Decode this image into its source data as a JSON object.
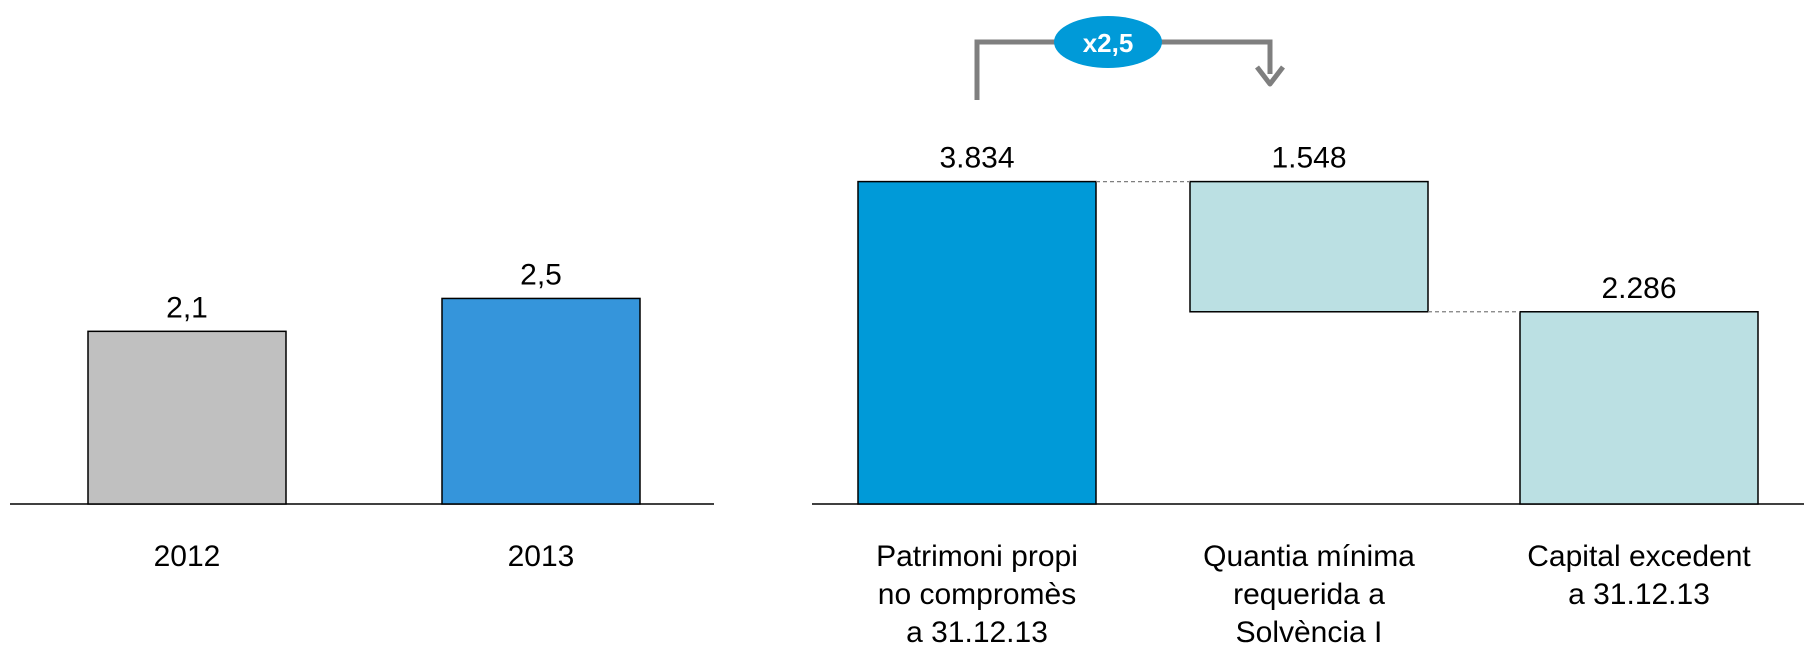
{
  "chart_data": [
    {
      "type": "bar",
      "categories": [
        "2012",
        "2013"
      ],
      "values": [
        2.1,
        2.5
      ],
      "value_labels": [
        "2,1",
        "2,5"
      ],
      "colors": [
        "#c0c0c0",
        "#3595db"
      ],
      "ylim": [
        0,
        4.5
      ]
    },
    {
      "type": "waterfall",
      "categories": [
        [
          "Patrimoni propi",
          "no compromès",
          "a 31.12.13"
        ],
        [
          "Quantia mínima",
          "requerida a",
          "Solvència I"
        ],
        [
          "Capital excedent",
          "a 31.12.13"
        ]
      ],
      "steps": [
        {
          "kind": "total",
          "value": 3834
        },
        {
          "kind": "decrease",
          "value": 1548
        },
        {
          "kind": "total",
          "value": 2286
        }
      ],
      "value_labels": [
        "3.834",
        "1.548",
        "2.286"
      ],
      "colors": [
        "#009ad8",
        "#bbe0e3",
        "#bbe0e3"
      ],
      "ylim": [
        0,
        4400
      ],
      "annotation": {
        "text": "x2,5",
        "color": "#009ad8",
        "arrow_color": "#7f7f7f",
        "from_step": 0,
        "to_step": 1
      }
    }
  ]
}
